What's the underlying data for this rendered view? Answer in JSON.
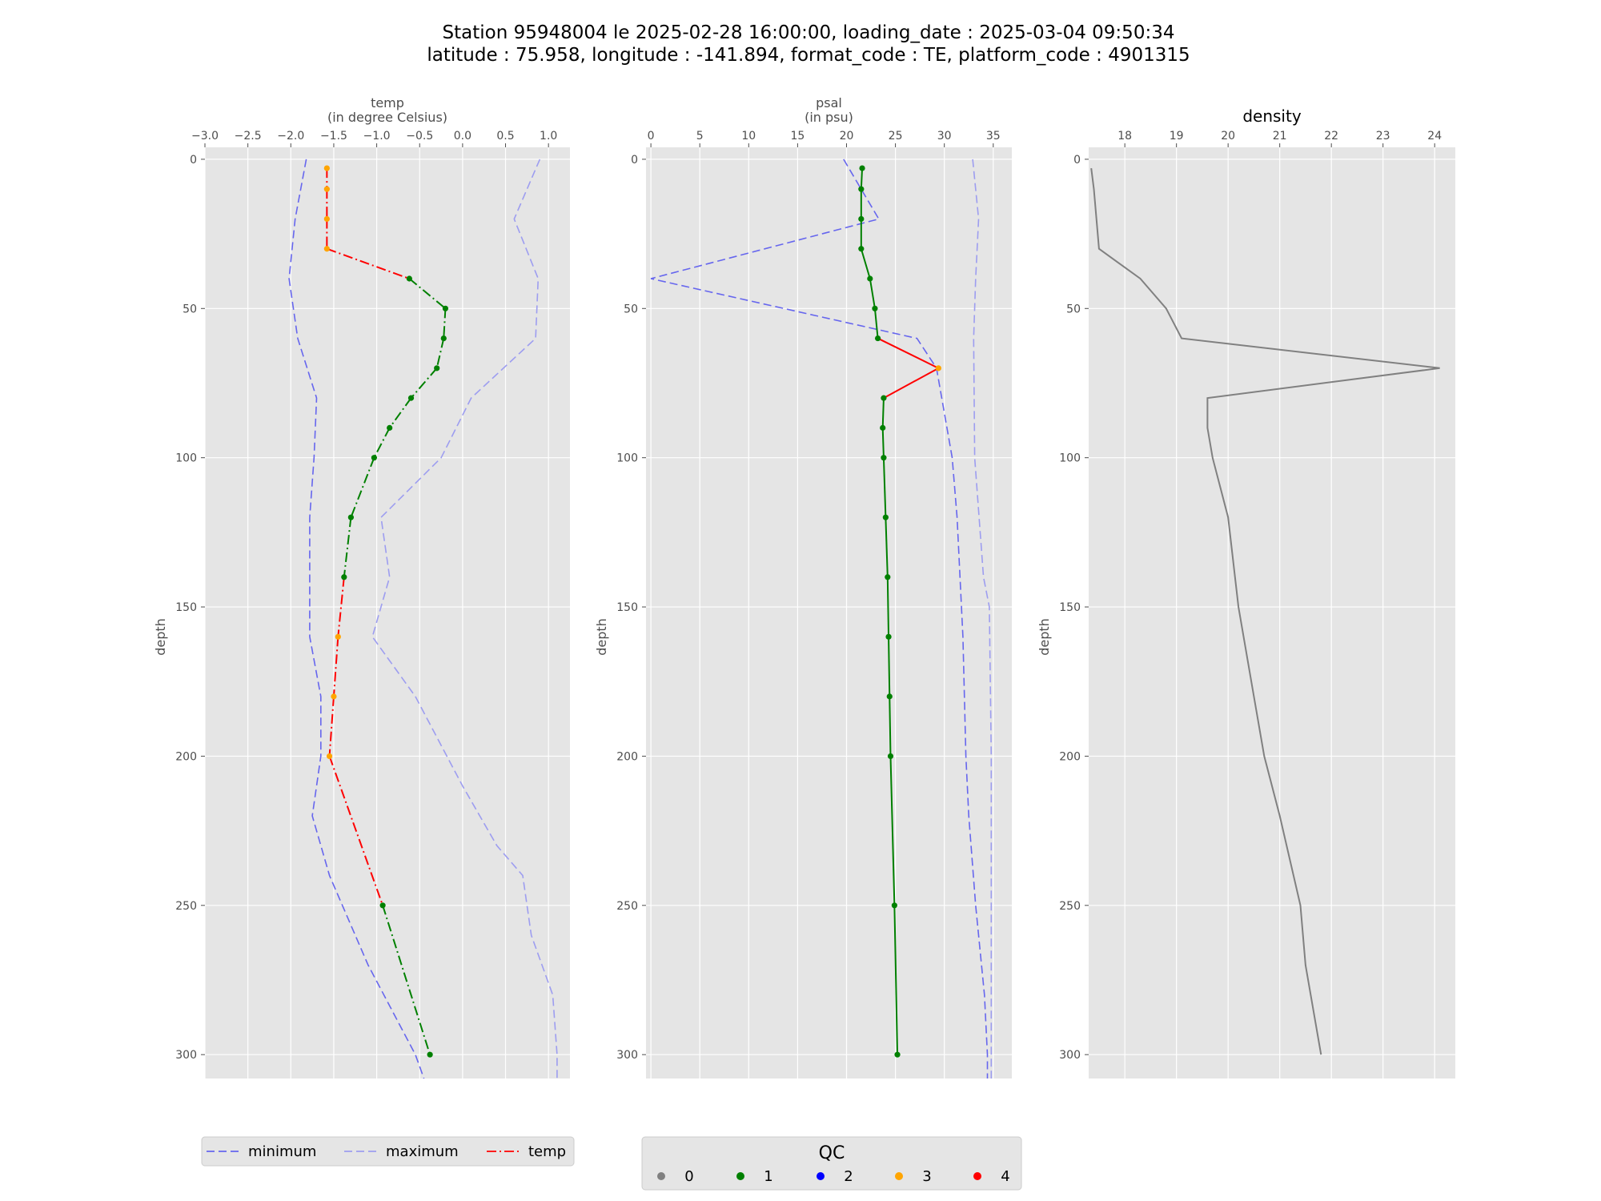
{
  "figure": {
    "title_line1": "Station 95948004 le 2025-02-28 16:00:00, loading_date : 2025-03-04 09:50:34",
    "title_line2": "latitude : 75.958, longitude : -141.894, format_code : TE, platform_code : 4901315"
  },
  "colors": {
    "background": "#e5e5e5",
    "grid": "#ffffff",
    "minimum": "#6666ee",
    "maximum": "#9d9df0",
    "qc_bad": "#ff0000",
    "qc_good": "#008000",
    "density": "#808080",
    "qc": {
      "0": "#808080",
      "1": "#008000",
      "2": "#0000ff",
      "3": "#ffa500",
      "4": "#ff0000"
    }
  },
  "chart_data": [
    {
      "type": "line",
      "id": "temp",
      "title": "temp\n(in degree Celsius)",
      "ylabel": "depth",
      "xlim": [
        -3.0,
        1.25
      ],
      "ylim": [
        308,
        -4
      ],
      "y_inverted": true,
      "xticks": [
        "−3.0",
        "−2.5",
        "−2.0",
        "−1.5",
        "−1.0",
        "−0.5",
        "0.0",
        "0.5",
        "1.0"
      ],
      "xtick_values": [
        -3.0,
        -2.5,
        -2.0,
        -1.5,
        -1.0,
        -0.5,
        0.0,
        0.5,
        1.0
      ],
      "yticks": [
        0,
        50,
        100,
        150,
        200,
        250,
        300
      ],
      "series": [
        {
          "name": "minimum",
          "style": "dashed",
          "points": [
            [
              -1.82,
              0
            ],
            [
              -1.95,
              20
            ],
            [
              -2.02,
              40
            ],
            [
              -1.92,
              60
            ],
            [
              -1.7,
              80
            ],
            [
              -1.73,
              100
            ],
            [
              -1.78,
              120
            ],
            [
              -1.78,
              140
            ],
            [
              -1.78,
              160
            ],
            [
              -1.65,
              180
            ],
            [
              -1.65,
              200
            ],
            [
              -1.75,
              220
            ],
            [
              -1.55,
              240
            ],
            [
              -1.1,
              270
            ],
            [
              -0.55,
              300
            ],
            [
              -0.45,
              308
            ]
          ]
        },
        {
          "name": "maximum",
          "style": "dashed",
          "points": [
            [
              0.9,
              0
            ],
            [
              0.6,
              20
            ],
            [
              0.88,
              40
            ],
            [
              0.85,
              60
            ],
            [
              0.1,
              80
            ],
            [
              -0.25,
              100
            ],
            [
              -0.95,
              120
            ],
            [
              -0.85,
              140
            ],
            [
              -1.05,
              160
            ],
            [
              -0.55,
              180
            ],
            [
              0.0,
              210
            ],
            [
              0.4,
              230
            ],
            [
              0.7,
              240
            ],
            [
              0.8,
              260
            ],
            [
              1.05,
              280
            ],
            [
              1.1,
              300
            ],
            [
              1.1,
              308
            ]
          ]
        },
        {
          "name": "temp",
          "style": "dashdot",
          "points": [
            [
              -1.58,
              3
            ],
            [
              -1.58,
              10
            ],
            [
              -1.58,
              20
            ],
            [
              -1.58,
              30
            ],
            [
              -0.62,
              40
            ],
            [
              -0.2,
              50
            ],
            [
              -0.22,
              60
            ],
            [
              -0.3,
              70
            ],
            [
              -0.6,
              80
            ],
            [
              -0.85,
              90
            ],
            [
              -1.03,
              100
            ],
            [
              -1.3,
              120
            ],
            [
              -1.38,
              140
            ],
            [
              -1.45,
              160
            ],
            [
              -1.5,
              180
            ],
            [
              -1.55,
              200
            ],
            [
              -0.93,
              250
            ],
            [
              -0.38,
              300
            ]
          ],
          "qc": [
            3,
            3,
            3,
            3,
            1,
            1,
            1,
            1,
            1,
            1,
            1,
            1,
            1,
            3,
            3,
            3,
            1,
            1
          ]
        }
      ]
    },
    {
      "type": "line",
      "id": "psal",
      "title": "psal\n(in psu)",
      "ylabel": "depth",
      "xlim": [
        -0.5,
        36.9
      ],
      "ylim": [
        308,
        -4
      ],
      "y_inverted": true,
      "xticks": [
        "0",
        "5",
        "10",
        "15",
        "20",
        "25",
        "30",
        "35"
      ],
      "xtick_values": [
        0,
        5,
        10,
        15,
        20,
        25,
        30,
        35
      ],
      "yticks": [
        0,
        50,
        100,
        150,
        200,
        250,
        300
      ],
      "series": [
        {
          "name": "minimum",
          "style": "dashed",
          "points": [
            [
              19.7,
              0
            ],
            [
              23.3,
              20
            ],
            [
              0.0,
              40
            ],
            [
              27.2,
              60
            ],
            [
              29.2,
              70
            ],
            [
              30.8,
              100
            ],
            [
              31.3,
              120
            ],
            [
              31.9,
              160
            ],
            [
              32.2,
              200
            ],
            [
              32.5,
              220
            ],
            [
              33.2,
              250
            ],
            [
              34.1,
              280
            ],
            [
              34.4,
              300
            ],
            [
              34.4,
              308
            ]
          ]
        },
        {
          "name": "maximum",
          "style": "dashed",
          "points": [
            [
              32.9,
              0
            ],
            [
              33.5,
              20
            ],
            [
              33.2,
              40
            ],
            [
              33.0,
              60
            ],
            [
              33.1,
              100
            ],
            [
              34.0,
              140
            ],
            [
              34.6,
              150
            ],
            [
              34.8,
              200
            ],
            [
              34.8,
              250
            ],
            [
              34.8,
              300
            ],
            [
              34.8,
              308
            ]
          ]
        },
        {
          "name": "psal",
          "style": "solid",
          "points": [
            [
              21.6,
              3
            ],
            [
              21.5,
              10
            ],
            [
              21.5,
              20
            ],
            [
              21.5,
              30
            ],
            [
              22.4,
              40
            ],
            [
              22.9,
              50
            ],
            [
              23.2,
              60
            ],
            [
              29.4,
              70
            ],
            [
              23.8,
              80
            ],
            [
              23.7,
              90
            ],
            [
              23.8,
              100
            ],
            [
              24.0,
              120
            ],
            [
              24.2,
              140
            ],
            [
              24.3,
              160
            ],
            [
              24.4,
              180
            ],
            [
              24.5,
              200
            ],
            [
              24.9,
              250
            ],
            [
              25.2,
              300
            ]
          ],
          "qc": [
            1,
            1,
            1,
            1,
            1,
            1,
            1,
            3,
            1,
            1,
            1,
            1,
            1,
            1,
            1,
            1,
            1,
            1
          ]
        }
      ]
    },
    {
      "type": "line",
      "id": "density",
      "title": "density",
      "ylabel": "depth",
      "xlim": [
        17.3,
        24.4
      ],
      "ylim": [
        308,
        -4
      ],
      "y_inverted": true,
      "xticks": [
        "18",
        "19",
        "20",
        "21",
        "22",
        "23",
        "24"
      ],
      "xtick_values": [
        18,
        19,
        20,
        21,
        22,
        23,
        24
      ],
      "yticks": [
        0,
        50,
        100,
        150,
        200,
        250,
        300
      ],
      "series": [
        {
          "name": "density",
          "style": "solid",
          "points": [
            [
              17.35,
              3
            ],
            [
              17.4,
              10
            ],
            [
              17.45,
              20
            ],
            [
              17.5,
              30
            ],
            [
              18.3,
              40
            ],
            [
              18.8,
              50
            ],
            [
              19.1,
              60
            ],
            [
              24.1,
              70
            ],
            [
              19.6,
              80
            ],
            [
              19.6,
              90
            ],
            [
              19.7,
              100
            ],
            [
              20.0,
              120
            ],
            [
              20.2,
              150
            ],
            [
              20.5,
              180
            ],
            [
              20.7,
              200
            ],
            [
              21.0,
              220
            ],
            [
              21.4,
              250
            ],
            [
              21.5,
              270
            ],
            [
              21.8,
              300
            ]
          ]
        }
      ]
    }
  ],
  "legend_lines": {
    "entries": [
      {
        "label": "minimum",
        "style": "dashed",
        "color": "#6666ee"
      },
      {
        "label": "maximum",
        "style": "dashed",
        "color": "#9d9df0"
      },
      {
        "label": "temp",
        "style": "dashdot",
        "color": "#ff0000"
      }
    ]
  },
  "legend_qc": {
    "title": "QC",
    "entries": [
      {
        "label": "0",
        "color": "#808080"
      },
      {
        "label": "1",
        "color": "#008000"
      },
      {
        "label": "2",
        "color": "#0000ff"
      },
      {
        "label": "3",
        "color": "#ffa500"
      },
      {
        "label": "4",
        "color": "#ff0000"
      }
    ]
  }
}
